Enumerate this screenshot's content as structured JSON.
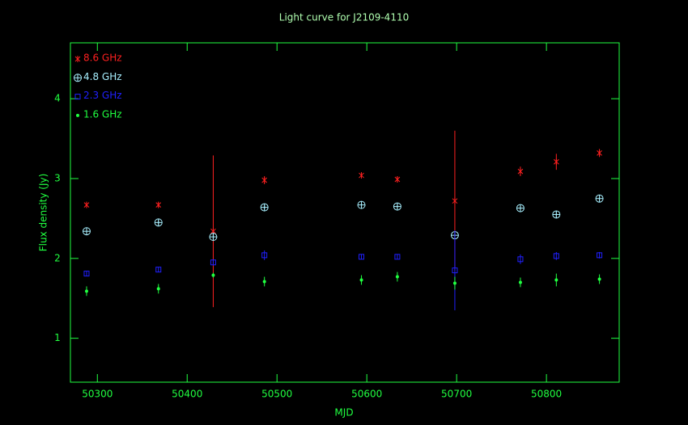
{
  "chart_data": {
    "type": "scatter",
    "title": "Light curve for J2109-4110",
    "x_label": "MJD",
    "y_label": "Flux density (Jy)",
    "x": [
      50288,
      50368,
      50429,
      50486,
      50594,
      50634,
      50698,
      50771,
      50811,
      50859
    ],
    "series": [
      {
        "name": "8.6 GHz",
        "color": "#ff2020",
        "marker": "asterisk",
        "values": [
          2.67,
          2.67,
          2.34,
          2.98,
          3.04,
          2.99,
          2.72,
          3.09,
          3.21,
          3.32
        ],
        "errors": [
          0.03,
          0.03,
          0.95,
          0.05,
          0.03,
          0.04,
          0.88,
          0.06,
          0.1,
          0.05
        ]
      },
      {
        "name": "4.8 GHz",
        "color": "#a8f0ff",
        "marker": "circle-plus",
        "values": [
          2.34,
          2.45,
          2.27,
          2.64,
          2.67,
          2.65,
          2.29,
          2.63,
          2.55,
          2.75
        ],
        "errors": [
          0.03,
          0.03,
          0.05,
          0.03,
          0.03,
          0.03,
          0.05,
          0.03,
          0.04,
          0.03
        ]
      },
      {
        "name": "2.3 GHz",
        "color": "#2020ff",
        "marker": "square",
        "values": [
          1.81,
          1.86,
          1.95,
          2.04,
          2.02,
          2.02,
          1.85,
          1.99,
          2.03,
          2.04
        ],
        "errors": [
          0.03,
          0.03,
          0.04,
          0.06,
          0.03,
          0.03,
          0.5,
          0.06,
          0.05,
          0.04
        ]
      },
      {
        "name": "1.6 GHz",
        "color": "#20ff40",
        "marker": "dot",
        "values": [
          1.59,
          1.62,
          1.79,
          1.71,
          1.73,
          1.77,
          1.69,
          1.7,
          1.73,
          1.74
        ],
        "errors": [
          0.06,
          0.06,
          0.03,
          0.06,
          0.06,
          0.06,
          0.08,
          0.06,
          0.08,
          0.06
        ]
      }
    ],
    "xlim": [
      50270,
      50881
    ],
    "ylim": [
      0.45,
      4.7
    ],
    "xticks": [
      50300,
      50400,
      50500,
      50600,
      50700,
      50800
    ],
    "yticks": [
      1,
      2,
      3,
      4
    ],
    "legend": "top-left",
    "axis_color": "#20ff40",
    "background": "#000000"
  }
}
